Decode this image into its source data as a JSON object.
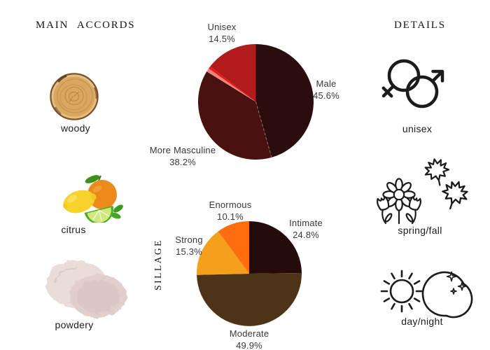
{
  "page": {
    "background": "#ffffff"
  },
  "main_accords": {
    "title": "MAIN ACCORDS",
    "items": [
      {
        "label": "woody",
        "icon": "wood-slice-image"
      },
      {
        "label": "citrus",
        "icon": "citrus-fruits-image"
      },
      {
        "label": "powdery",
        "icon": "cosmetic-powder-image"
      }
    ]
  },
  "details": {
    "title": "DETAILS",
    "items": [
      {
        "label": "unisex",
        "icon": "unisex-gender-symbol-icon"
      },
      {
        "label": "spring/fall",
        "icon": "flowers-and-maple-leaves-icon"
      },
      {
        "label": "day/night",
        "icon": "sun-and-crescent-moon-icon"
      }
    ]
  },
  "chart_data": [
    {
      "type": "pie",
      "id": "gender-pie",
      "labels_position": "outside",
      "start_angle_deg": 0,
      "direction": "clockwise",
      "slices": [
        {
          "label": "Male",
          "pct": "45.6%",
          "value": 45.6,
          "color": "#2b0d0d"
        },
        {
          "label": "More Masculine",
          "pct": "38.2%",
          "value": 38.2,
          "color": "#4a1111"
        },
        {
          "label": "",
          "pct": "",
          "value": 1.0,
          "color": "#f0837b"
        },
        {
          "label": "",
          "pct": "",
          "value": 0.7,
          "color": "#ee1610"
        },
        {
          "label": "Unisex",
          "pct": "14.5%",
          "value": 14.5,
          "color": "#b21b1b"
        }
      ]
    },
    {
      "type": "pie",
      "id": "sillage-pie",
      "side_label": "SILLAGE",
      "labels_position": "outside",
      "start_angle_deg": 0,
      "direction": "clockwise",
      "slices": [
        {
          "label": "Intimate",
          "pct": "24.8%",
          "value": 24.8,
          "color": "#260c08"
        },
        {
          "label": "Moderate",
          "pct": "49.9%",
          "value": 49.9,
          "color": "#4d3418"
        },
        {
          "label": "Strong",
          "pct": "15.3%",
          "value": 15.3,
          "color": "#f5a01d"
        },
        {
          "label": "Enormous",
          "pct": "10.1%",
          "value": 10.1,
          "color": "#ff6d0e"
        }
      ]
    }
  ]
}
